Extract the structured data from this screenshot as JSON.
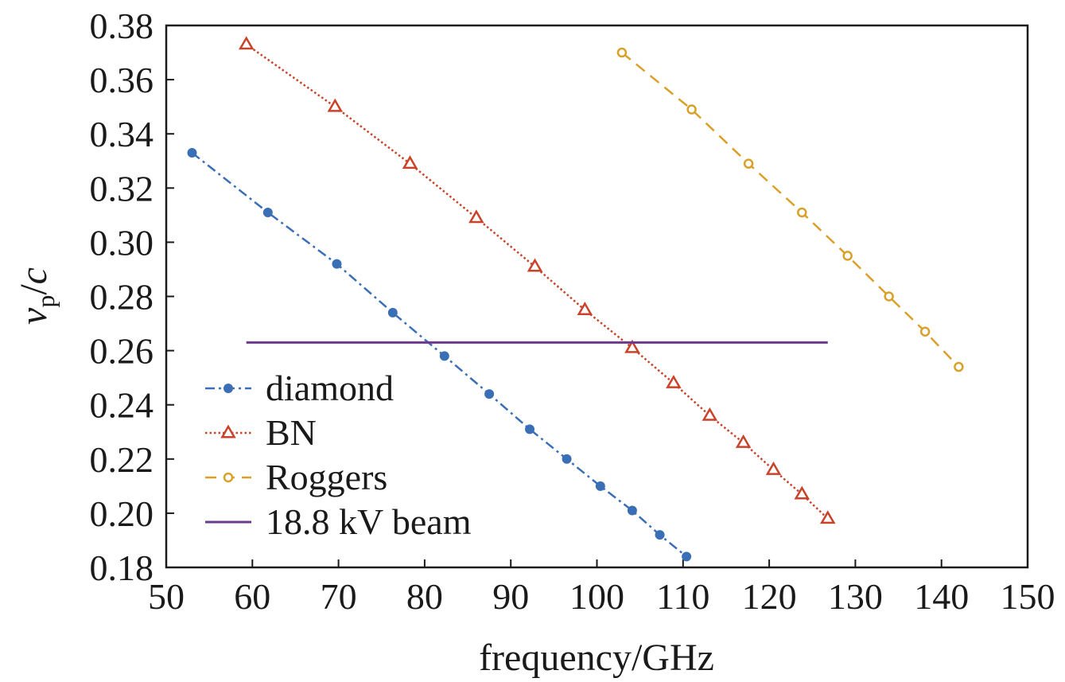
{
  "chart_data": {
    "type": "line",
    "title": "",
    "xlabel": "frequency/GHz",
    "ylabel": {
      "v": "v",
      "sub": "p",
      "slash": "/",
      "c": "c"
    },
    "xlim": [
      50,
      150
    ],
    "ylim": [
      0.18,
      0.38
    ],
    "xticks": [
      "50",
      "60",
      "70",
      "80",
      "90",
      "100",
      "110",
      "120",
      "130",
      "140",
      "150"
    ],
    "yticks": [
      "0.18",
      "0.20",
      "0.22",
      "0.24",
      "0.26",
      "0.28",
      "0.30",
      "0.32",
      "0.34",
      "0.36",
      "0.38"
    ],
    "grid": false,
    "legend_position": "lower-left",
    "series": [
      {
        "name": "diamond",
        "color": "#3a6fb5",
        "line": "dashdot",
        "marker": "filled-circle",
        "x": [
          53.0,
          61.8,
          69.8,
          76.3,
          82.3,
          87.5,
          92.2,
          96.5,
          100.4,
          104.1,
          107.3,
          110.4
        ],
        "y": [
          0.333,
          0.311,
          0.292,
          0.274,
          0.258,
          0.244,
          0.231,
          0.22,
          0.21,
          0.201,
          0.192,
          0.184
        ]
      },
      {
        "name": "BN",
        "color": "#c9432a",
        "line": "dotted",
        "marker": "open-triangle",
        "x": [
          59.3,
          69.6,
          78.3,
          86.0,
          92.8,
          98.6,
          104.1,
          108.9,
          113.1,
          117.0,
          120.5,
          123.8,
          126.8
        ],
        "y": [
          0.373,
          0.35,
          0.329,
          0.309,
          0.291,
          0.275,
          0.261,
          0.248,
          0.236,
          0.226,
          0.216,
          0.207,
          0.198
        ]
      },
      {
        "name": "Roggers",
        "color": "#d9a02a",
        "line": "dashed",
        "marker": "open-circle",
        "x": [
          102.9,
          111.0,
          117.6,
          123.8,
          129.1,
          133.9,
          138.1,
          142.0
        ],
        "y": [
          0.37,
          0.349,
          0.329,
          0.311,
          0.295,
          0.28,
          0.267,
          0.254
        ]
      },
      {
        "name": "18.8 kV beam",
        "color": "#6b3a8c",
        "line": "solid",
        "marker": "none",
        "x": [
          59.3,
          126.8
        ],
        "y": [
          0.263,
          0.263
        ]
      }
    ]
  }
}
